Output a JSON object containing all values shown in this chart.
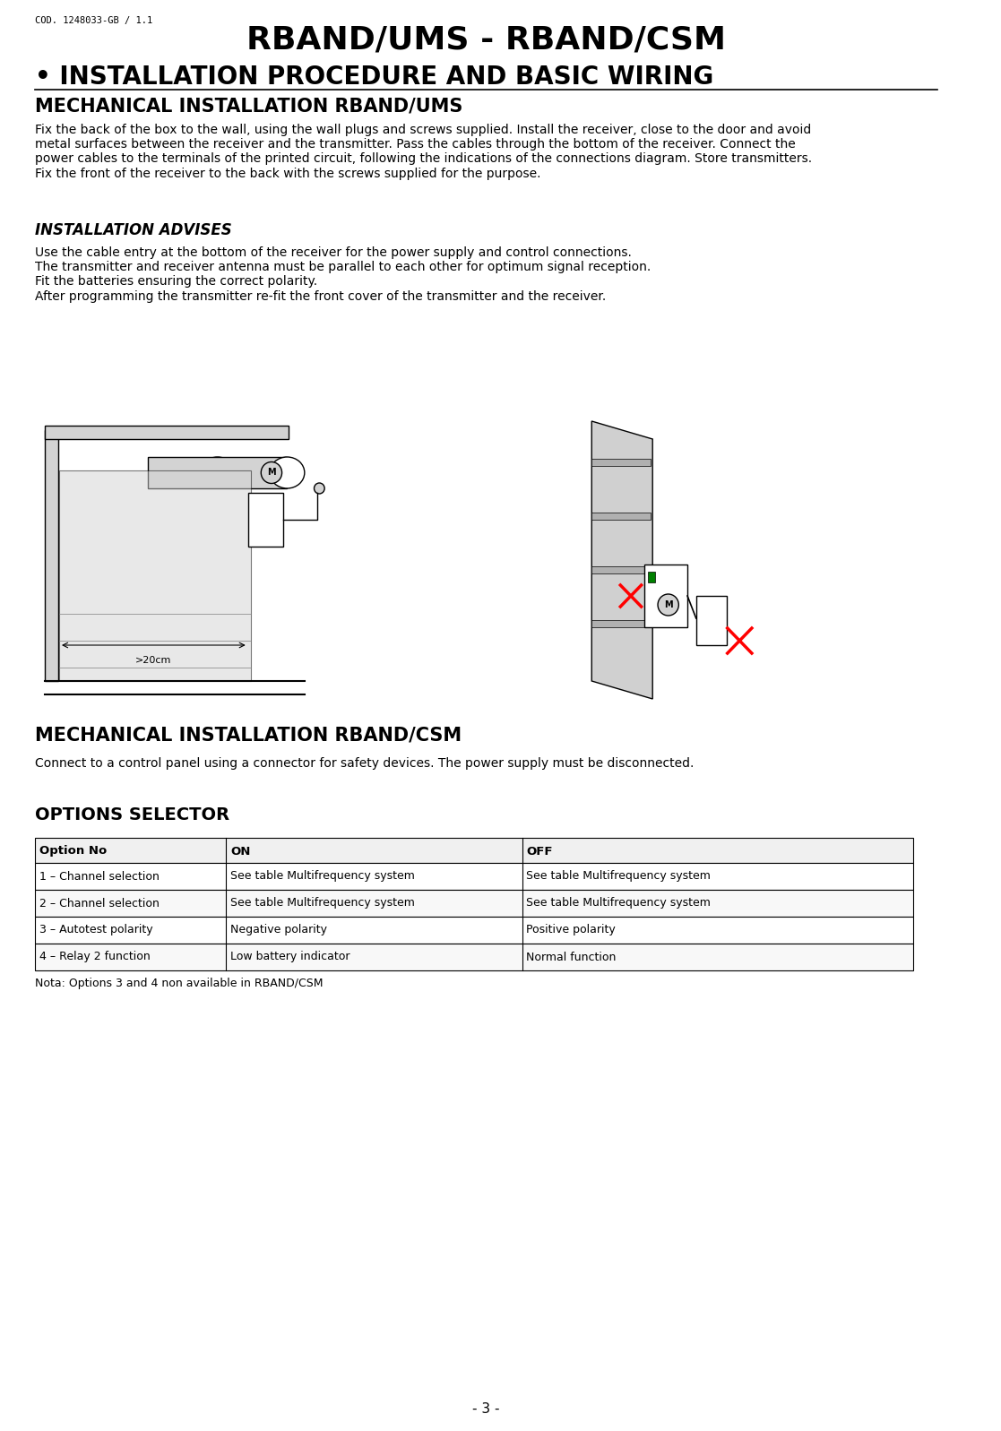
{
  "bg_color": "#ffffff",
  "cod_text": "COD. 1248033-GB / 1.1",
  "title1": "RBAND/UMS - RBAND/CSM",
  "title2": "• INSTALLATION PROCEDURE AND BASIC WIRING",
  "section1_head": "MECHANICAL INSTALLATION RBAND/UMS",
  "section1_body": "Fix the back of the box to the wall, using the wall plugs and screws supplied. Install the receiver, close to the door and avoid\nmetal surfaces between the receiver and the transmitter. Pass the cables through the bottom of the receiver. Connect the\npower cables to the terminals of the printed circuit, following the indications of the connections diagram. Store transmitters.\nFix the front of the receiver to the back with the screws supplied for the purpose.",
  "section2_head": "INSTALLATION ADVISES",
  "section2_body": "Use the cable entry at the bottom of the receiver for the power supply and control connections.\nThe transmitter and receiver antenna must be parallel to each other for optimum signal reception.\nFit the batteries ensuring the correct polarity.\nAfter programming the transmitter re-fit the front cover of the transmitter and the receiver.",
  "section3_head": "MECHANICAL INSTALLATION RBAND/CSM",
  "section3_body": "Connect to a control panel using a connector for safety devices. The power supply must be disconnected.",
  "section4_head": "OPTIONS SELECTOR",
  "table_headers": [
    "Option No",
    "ON",
    "OFF"
  ],
  "table_rows": [
    [
      "1 – Channel selection",
      "See table Multifrequency system",
      "See table Multifrequency system"
    ],
    [
      "2 – Channel selection",
      "See table Multifrequency system",
      "See table Multifrequency system"
    ],
    [
      "3 – Autotest polarity",
      "Negative polarity",
      "Positive polarity"
    ],
    [
      "4 – Relay 2 function",
      "Low battery indicator",
      "Normal function"
    ]
  ],
  "table_note": "Nota: Options 3 and 4 non available in RBAND/CSM",
  "page_number": "- 3 -",
  "label_20cm": ">20cm"
}
